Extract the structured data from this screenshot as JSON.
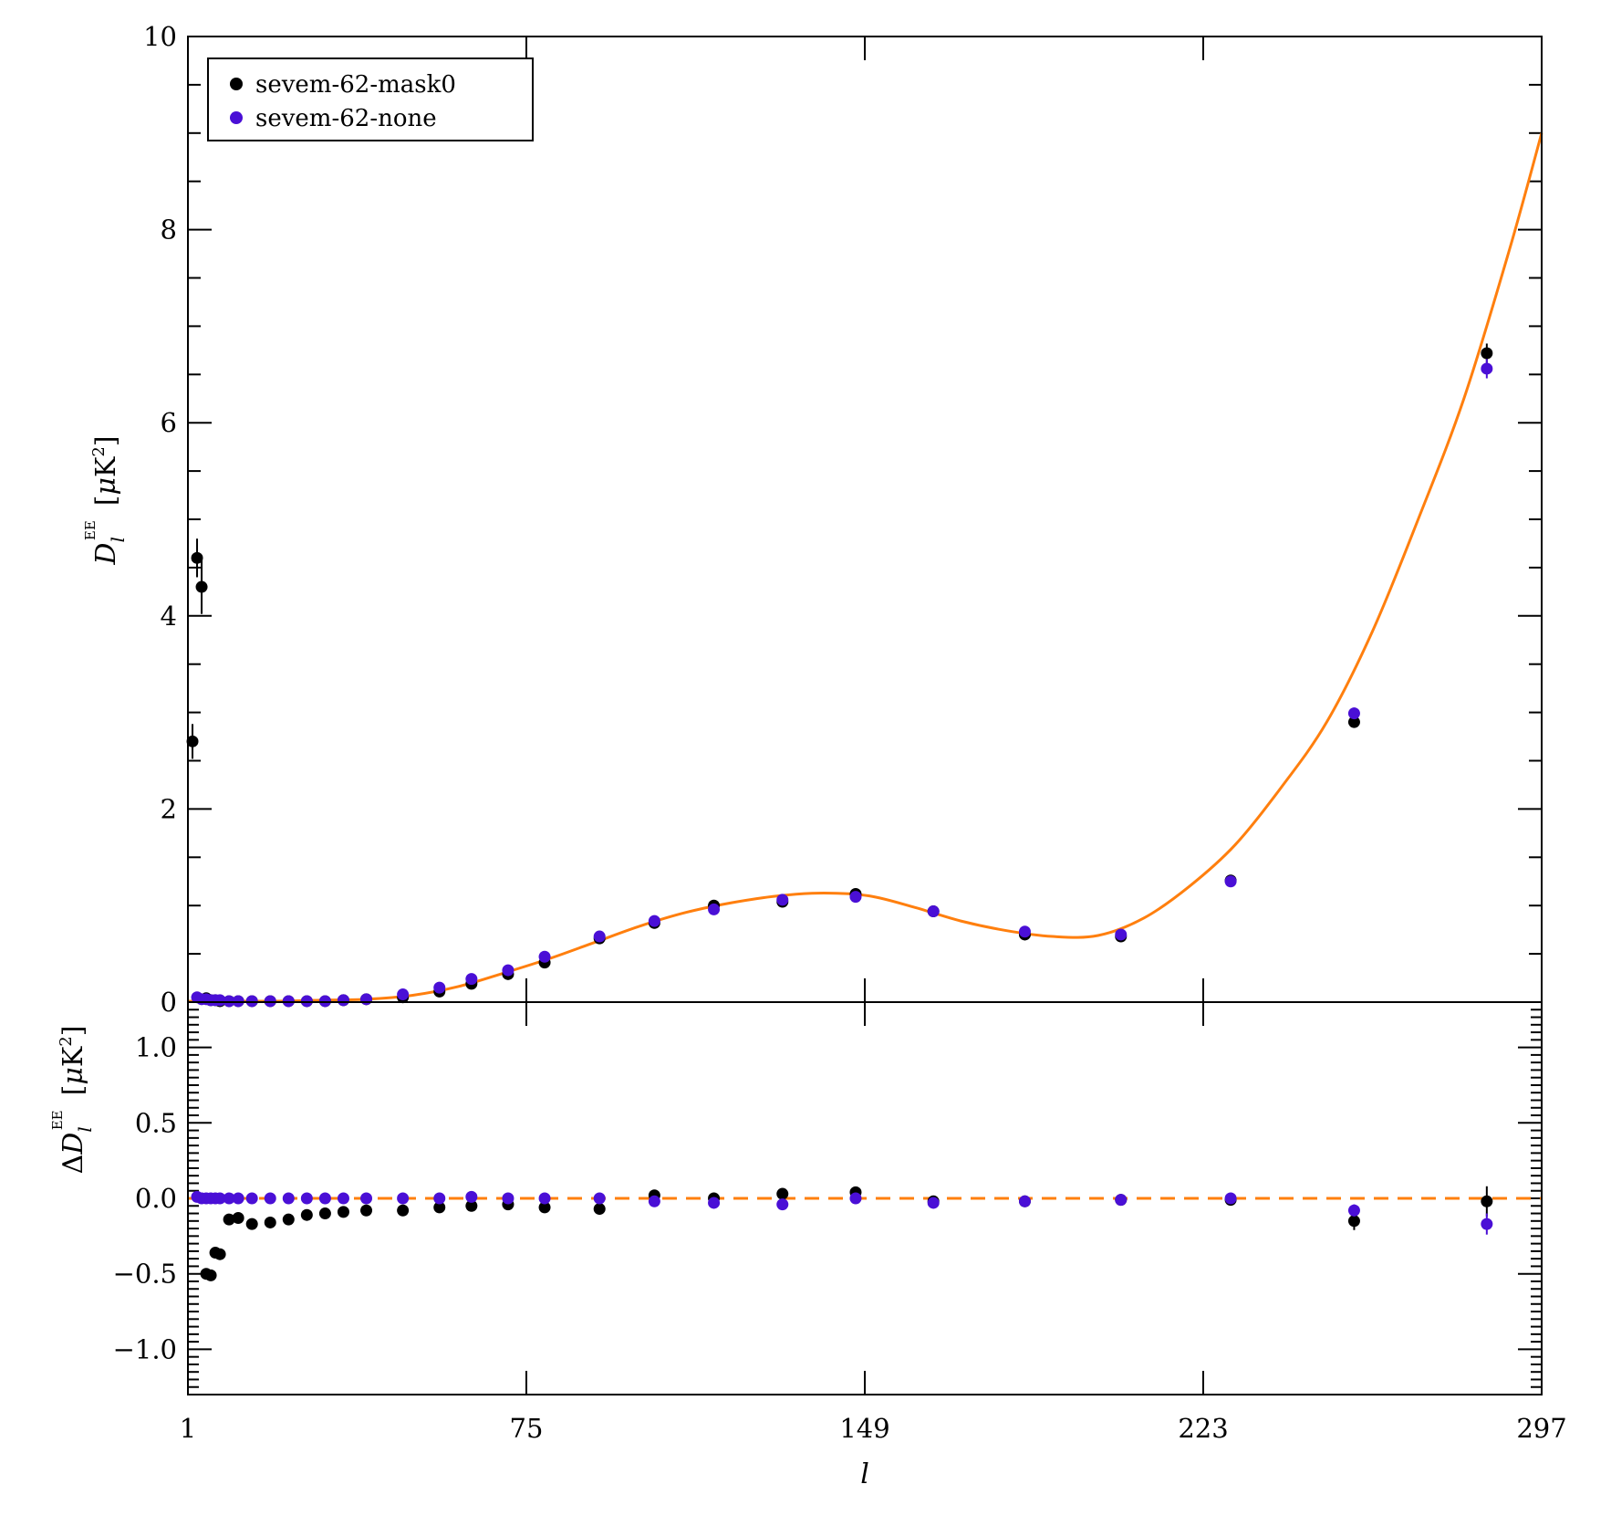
{
  "chart_data": [
    {
      "type": "scatter",
      "panel": "top",
      "xlabel": "l",
      "ylabel": "D_l^EE [μK^2]",
      "ylabel_parts": {
        "main": "D",
        "sub": "l",
        "sup": "EE",
        "unit_open": "[",
        "unit_mu": "μ",
        "unit_K": "K",
        "unit_pow": "2",
        "unit_close": "]"
      },
      "xlim": [
        1,
        297
      ],
      "ylim": [
        0,
        10
      ],
      "xticks": [
        1,
        75,
        149,
        223,
        297
      ],
      "xtick_labels": [
        "1",
        "75",
        "149",
        "223",
        "297"
      ],
      "yticks": [
        0,
        2,
        4,
        6,
        8,
        10
      ],
      "ytick_labels": [
        "0",
        "2",
        "4",
        "6",
        "8",
        "10"
      ],
      "grid": false,
      "legend": "top-left",
      "series": [
        {
          "name": "sevem-62-mask0",
          "color": "#000000",
          "x": [
            2,
            3,
            4,
            5,
            6,
            7,
            8,
            10,
            12,
            15,
            19,
            23,
            27,
            31,
            35,
            40,
            48,
            56,
            63,
            71,
            79,
            91,
            103,
            116,
            131,
            147,
            164,
            184,
            205,
            229,
            256,
            285
          ],
          "y": [
            2.7,
            4.6,
            4.3,
            0.04,
            0.02,
            0.02,
            0.01,
            0.01,
            0.01,
            0.01,
            0.01,
            0.01,
            0.01,
            0.01,
            0.02,
            0.03,
            0.05,
            0.11,
            0.19,
            0.29,
            0.41,
            0.66,
            0.82,
            1.0,
            1.04,
            1.12,
            0.94,
            0.7,
            0.68,
            1.26,
            2.9,
            6.72
          ],
          "yerr": [
            0.18,
            0.2,
            0.28,
            0.03,
            0.02,
            0.02,
            0.01,
            0.01,
            0.01,
            0.01,
            0.01,
            0.01,
            0.01,
            0.01,
            0.01,
            0.01,
            0.01,
            0.02,
            0.02,
            0.02,
            0.02,
            0.02,
            0.02,
            0.03,
            0.03,
            0.03,
            0.03,
            0.03,
            0.04,
            0.04,
            0.06,
            0.1
          ]
        },
        {
          "name": "sevem-62-none",
          "color": "#4a0fd6",
          "x": [
            3,
            4,
            5,
            6,
            7,
            8,
            10,
            12,
            15,
            19,
            23,
            27,
            31,
            35,
            40,
            48,
            56,
            63,
            71,
            79,
            91,
            103,
            116,
            131,
            147,
            164,
            184,
            205,
            229,
            256,
            285
          ],
          "y": [
            0.05,
            0.03,
            0.03,
            0.02,
            0.02,
            0.02,
            0.01,
            0.01,
            0.01,
            0.01,
            0.01,
            0.01,
            0.01,
            0.02,
            0.03,
            0.08,
            0.15,
            0.24,
            0.33,
            0.47,
            0.68,
            0.84,
            0.96,
            1.06,
            1.09,
            0.94,
            0.73,
            0.7,
            1.25,
            2.99,
            6.56
          ],
          "yerr": [
            0.02,
            0.02,
            0.02,
            0.02,
            0.02,
            0.01,
            0.01,
            0.01,
            0.01,
            0.01,
            0.01,
            0.01,
            0.01,
            0.01,
            0.01,
            0.01,
            0.02,
            0.02,
            0.02,
            0.02,
            0.02,
            0.02,
            0.03,
            0.03,
            0.03,
            0.03,
            0.03,
            0.04,
            0.04,
            0.06,
            0.1
          ]
        },
        {
          "name": "model",
          "style": "solid-line",
          "color": "#ff7f0e",
          "x": [
            1,
            20,
            30,
            40,
            50,
            60,
            70,
            80,
            90,
            100,
            110,
            120,
            130,
            140,
            150,
            160,
            170,
            180,
            190,
            200,
            210,
            220,
            230,
            240,
            250,
            260,
            270,
            280,
            290,
            297
          ],
          "y": [
            0.01,
            0.01,
            0.02,
            0.03,
            0.07,
            0.16,
            0.3,
            0.45,
            0.62,
            0.79,
            0.93,
            1.03,
            1.1,
            1.13,
            1.1,
            0.98,
            0.84,
            0.74,
            0.68,
            0.69,
            0.87,
            1.2,
            1.63,
            2.22,
            2.9,
            3.84,
            5.0,
            6.25,
            7.8,
            9.0
          ]
        }
      ]
    },
    {
      "type": "scatter",
      "panel": "bottom",
      "xlabel": "l",
      "ylabel": "ΔD_l^EE [μK^2]",
      "ylabel_parts": {
        "delta": "Δ",
        "main": "D",
        "sub": "l",
        "sup": "EE",
        "unit_open": "[",
        "unit_mu": "μ",
        "unit_K": "K",
        "unit_pow": "2",
        "unit_close": "]"
      },
      "xlim": [
        1,
        297
      ],
      "ylim": [
        -1.3,
        1.3
      ],
      "yticks": [
        -1.0,
        -0.5,
        0.0,
        0.5,
        1.0
      ],
      "ytick_labels": [
        "−1.0",
        "−0.5",
        "0.0",
        "0.5",
        "1.0"
      ],
      "grid": false,
      "series": [
        {
          "name": "sevem-62-mask0",
          "color": "#000000",
          "x": [
            5,
            6,
            7,
            8,
            10,
            12,
            15,
            19,
            23,
            27,
            31,
            35,
            40,
            48,
            56,
            63,
            71,
            79,
            91,
            103,
            116,
            131,
            147,
            164,
            184,
            205,
            229,
            256,
            285
          ],
          "y": [
            -0.5,
            -0.51,
            -0.36,
            -0.37,
            -0.14,
            -0.13,
            -0.17,
            -0.16,
            -0.14,
            -0.11,
            -0.1,
            -0.09,
            -0.08,
            -0.08,
            -0.06,
            -0.05,
            -0.04,
            -0.06,
            -0.07,
            0.02,
            0.0,
            0.03,
            0.04,
            -0.02,
            -0.02,
            -0.01,
            -0.01,
            -0.15,
            -0.02
          ],
          "yerr": [
            0.02,
            0.02,
            0.02,
            0.02,
            0.02,
            0.02,
            0.02,
            0.01,
            0.01,
            0.01,
            0.01,
            0.01,
            0.01,
            0.01,
            0.01,
            0.01,
            0.01,
            0.01,
            0.02,
            0.02,
            0.02,
            0.02,
            0.02,
            0.02,
            0.02,
            0.02,
            0.02,
            0.06,
            0.1
          ]
        },
        {
          "name": "sevem-62-none",
          "color": "#4a0fd6",
          "x": [
            3,
            4,
            5,
            6,
            7,
            8,
            10,
            12,
            15,
            19,
            23,
            27,
            31,
            35,
            40,
            48,
            56,
            63,
            71,
            79,
            91,
            103,
            116,
            131,
            147,
            164,
            184,
            205,
            229,
            256,
            285
          ],
          "y": [
            0.01,
            0.0,
            0.0,
            0.0,
            0.0,
            0.0,
            0.0,
            0.0,
            0.0,
            0.0,
            0.0,
            0.0,
            0.0,
            0.0,
            0.0,
            0.0,
            0.0,
            0.01,
            0.0,
            0.0,
            0.0,
            -0.02,
            -0.03,
            -0.04,
            0.0,
            -0.03,
            -0.02,
            -0.01,
            0.0,
            -0.08,
            -0.17
          ],
          "yerr": [
            0.01,
            0.01,
            0.01,
            0.01,
            0.01,
            0.01,
            0.01,
            0.01,
            0.01,
            0.01,
            0.01,
            0.01,
            0.01,
            0.01,
            0.01,
            0.01,
            0.01,
            0.01,
            0.01,
            0.01,
            0.01,
            0.02,
            0.02,
            0.02,
            0.02,
            0.02,
            0.02,
            0.02,
            0.02,
            0.04,
            0.07
          ]
        },
        {
          "name": "zero-line",
          "style": "dashed-line",
          "color": "#ff7f0e",
          "y": 0.0
        }
      ]
    }
  ]
}
